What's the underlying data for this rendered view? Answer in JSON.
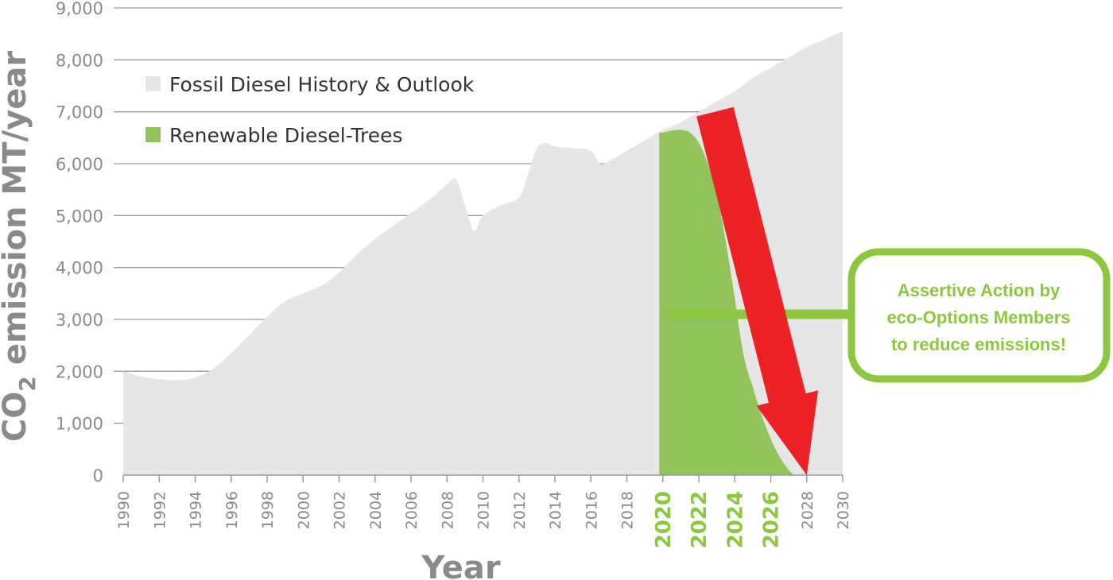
{
  "chart_data": {
    "type": "area",
    "xlabel": "Year",
    "ylabel": "CO",
    "ylabel_sub": "2",
    "ylabel_rest": " emission MT/year",
    "xlim": [
      1990,
      2030
    ],
    "ylim": [
      0,
      9000
    ],
    "yticks": [
      0,
      1000,
      2000,
      3000,
      4000,
      5000,
      6000,
      7000,
      8000,
      9000
    ],
    "ytick_labels": [
      "0",
      "1,000",
      "2,000",
      "3,000",
      "4,000",
      "5,000",
      "6,000",
      "7,000",
      "8,000",
      "9,000"
    ],
    "xticks": [
      1990,
      1992,
      1994,
      1996,
      1998,
      2000,
      2002,
      2004,
      2006,
      2008,
      2010,
      2012,
      2014,
      2016,
      2018,
      2020,
      2022,
      2024,
      2026,
      2028,
      2030
    ],
    "xtick_labels": [
      "1990",
      "1992",
      "1994",
      "1996",
      "1998",
      "2000",
      "2002",
      "2004",
      "2006",
      "2008",
      "2010",
      "2012",
      "2014",
      "2016",
      "2018",
      "2020",
      "2022",
      "2024",
      "2026",
      "2028",
      "2030"
    ],
    "highlighted_xticks": [
      "2020",
      "2022",
      "2024",
      "2026"
    ],
    "grid": true,
    "legend_position": "top-left",
    "series": [
      {
        "name": "Fossil Diesel History & Outlook",
        "color": "#e6e6e7",
        "x": [
          1990,
          1991,
          1992,
          1993,
          1994,
          1995,
          1996,
          1997,
          1998,
          1999,
          2000,
          2001,
          2002,
          2003,
          2004,
          2005,
          2006,
          2007,
          2008,
          2008.5,
          2009,
          2009.5,
          2010,
          2011,
          2012,
          2012.5,
          2013,
          2013.5,
          2014,
          2015,
          2016,
          2016.5,
          2017,
          2018,
          2019,
          2020,
          2021,
          2022,
          2023,
          2024,
          2025,
          2026,
          2027,
          2028,
          2029,
          2030
        ],
        "y": [
          2000,
          1900,
          1850,
          1830,
          1880,
          2050,
          2350,
          2700,
          3050,
          3350,
          3500,
          3650,
          3900,
          4250,
          4550,
          4800,
          5050,
          5300,
          5600,
          5700,
          5200,
          4700,
          5000,
          5200,
          5350,
          5800,
          6300,
          6400,
          6330,
          6300,
          6250,
          6000,
          6050,
          6250,
          6450,
          6650,
          6800,
          7000,
          7200,
          7400,
          7650,
          7850,
          8050,
          8250,
          8400,
          8550
        ]
      },
      {
        "name": "Renewable Diesel-Trees",
        "color": "#93c45b",
        "x": [
          2019.8,
          2020,
          2020.5,
          2021,
          2021.5,
          2022,
          2022.5,
          2023,
          2023.5,
          2024,
          2024.5,
          2025,
          2025.5,
          2026,
          2026.5,
          2027,
          2027.3
        ],
        "y": [
          6600,
          6600,
          6640,
          6650,
          6600,
          6400,
          6000,
          5400,
          4500,
          3400,
          2300,
          1700,
          1150,
          700,
          350,
          100,
          0
        ]
      }
    ],
    "annotations": [
      {
        "type": "arrow",
        "color": "#ec2227",
        "from": [
          2022.9,
          7000
        ],
        "to": [
          2028,
          0
        ]
      },
      {
        "type": "callout",
        "lines": [
          "Assertive Action by",
          "eco-Options Members",
          "to reduce emissions!"
        ],
        "border_color": "#8dc63f",
        "text_color": "#8dc63f",
        "pointer_x": 2020.2,
        "pointer_y": 3100
      }
    ]
  }
}
